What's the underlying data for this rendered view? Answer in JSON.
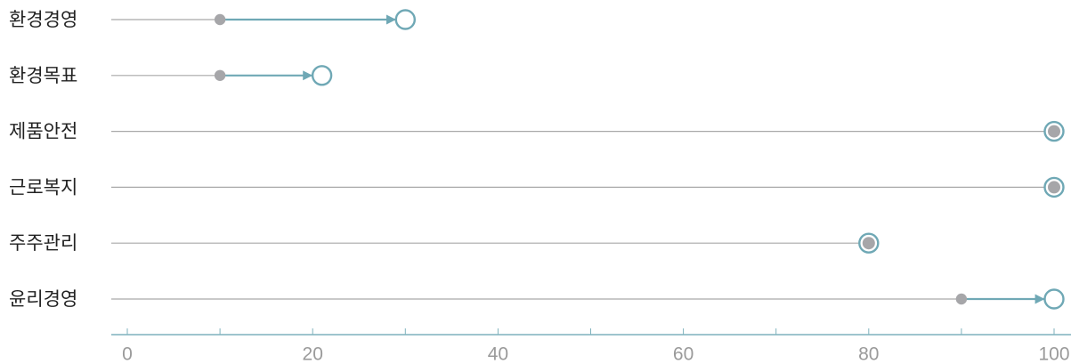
{
  "chart_data": {
    "type": "dumbbell",
    "title": "",
    "xlabel": "",
    "ylabel": "",
    "xlim": [
      0,
      100
    ],
    "x_ticks": [
      0,
      20,
      40,
      60,
      80,
      100
    ],
    "x_ticks_minor": [
      10,
      30,
      50,
      70,
      90
    ],
    "grid": false,
    "legend": "none",
    "categories": [
      "환경경영",
      "환경목표",
      "제품안전",
      "근로복지",
      "주주관리",
      "윤리경영"
    ],
    "series": [
      {
        "values": [
          10,
          10,
          100,
          100,
          80,
          90
        ]
      },
      {
        "values": [
          30,
          21,
          100,
          100,
          80,
          100
        ]
      }
    ],
    "colors": {
      "start_point": "#a6a6a9",
      "end_point": "#6fa8b5",
      "row_line": "#a9a9a9",
      "arrow": "#6fa8b5",
      "axis": "#7fb2bd",
      "tick_label": "#9a9a9a",
      "category_label": "#222222"
    }
  }
}
